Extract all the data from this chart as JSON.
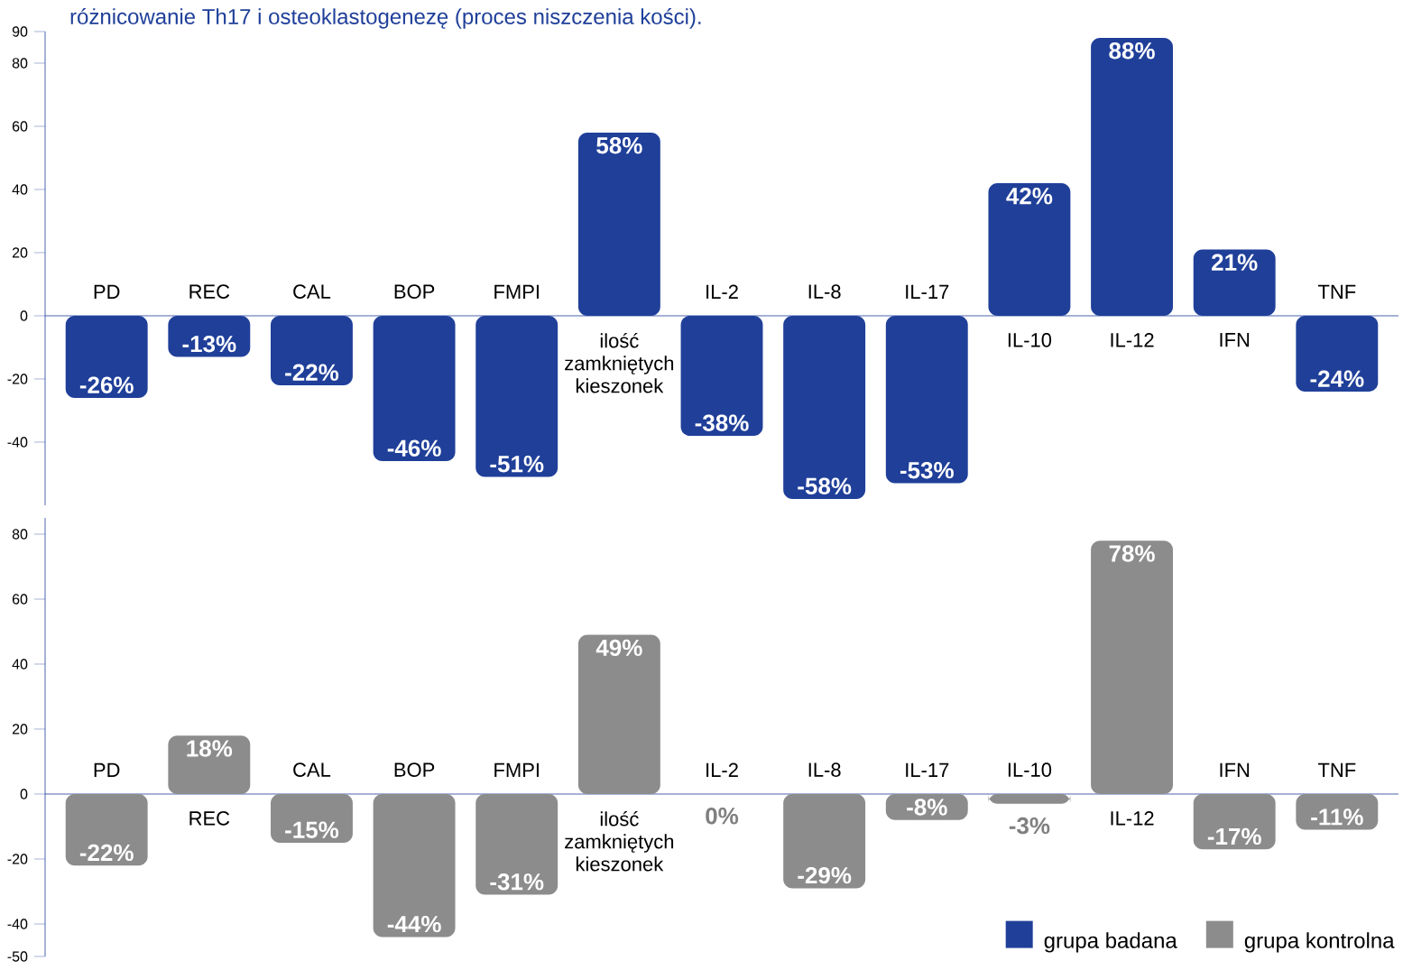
{
  "chart_data": [
    {
      "type": "bar",
      "title": "różnicowanie Th17 i osteoklastogenezę (proces niszczenia kości).",
      "categories": [
        "PD",
        "REC",
        "CAL",
        "BOP",
        "FMPI",
        "ilość zamkniętych kieszonek",
        "IL-2",
        "IL-8",
        "IL-17",
        "IL-10",
        "IL-12",
        "IFN",
        "TNF"
      ],
      "series": [
        {
          "name": "grupa badana",
          "color": "#1f3f99",
          "values": [
            -26,
            -13,
            -22,
            -46,
            -51,
            58,
            -38,
            -58,
            -53,
            42,
            88,
            21,
            -24
          ],
          "value_labels": [
            "-26%",
            "-13%",
            "-22%",
            "-46%",
            "-51%",
            "58%",
            "-38%",
            "-58%",
            "-53%",
            "42%",
            "88%",
            "21%",
            "-24%"
          ]
        }
      ],
      "ylim": [
        -60,
        90
      ],
      "yticks": [
        -40,
        -20,
        0,
        20,
        40,
        60,
        80,
        90
      ],
      "legend": "bottom right"
    },
    {
      "type": "bar",
      "categories": [
        "PD",
        "REC",
        "CAL",
        "BOP",
        "FMPI",
        "ilość zamkniętych kieszonek",
        "IL-2",
        "IL-8",
        "IL-17",
        "IL-10",
        "IL-12",
        "IFN",
        "TNF"
      ],
      "series": [
        {
          "name": "grupa kontrolna",
          "color": "#8c8c8c",
          "values": [
            -22,
            18,
            -15,
            -44,
            -31,
            49,
            0,
            -29,
            -8,
            -3,
            78,
            -17,
            -11
          ],
          "value_labels": [
            "-22%",
            "18%",
            "-15%",
            "-44%",
            "-31%",
            "49%",
            "0%",
            "-29%",
            "-8%",
            "-3%",
            "78%",
            "-17%",
            "-11%"
          ]
        }
      ],
      "ylim": [
        -50,
        85
      ],
      "yticks": [
        -50,
        -40,
        -20,
        0,
        20,
        40,
        60,
        80
      ],
      "legend": "bottom right"
    }
  ]
}
